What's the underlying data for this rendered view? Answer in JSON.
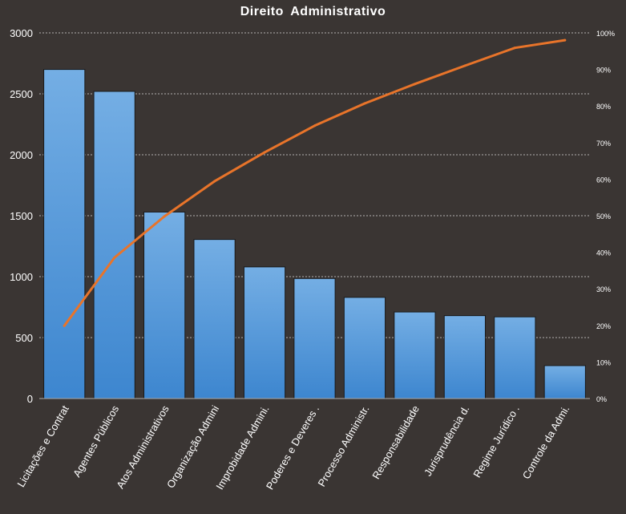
{
  "chart_data": {
    "type": "bar",
    "title": "Direito  Administrativo",
    "categories": [
      "Licitações e Contrat",
      "Agentes Públicos",
      "Atos Administrativos",
      "Organização Admini",
      "Improbidade Admini.",
      "Poderes e Deveres .",
      "Processo Administr.",
      "Responsabilidade",
      "Jurisprudência d.",
      "Regime Jurídico .",
      "Controle da Admi."
    ],
    "values": [
      2700,
      2520,
      1530,
      1305,
      1080,
      985,
      830,
      710,
      680,
      670,
      270
    ],
    "cumulative_percent": [
      19.9,
      38.5,
      49.8,
      59.4,
      67.3,
      74.6,
      80.7,
      86.0,
      91.0,
      95.9,
      98.0
    ],
    "ylim": [
      0,
      3000
    ],
    "y_ticks": [
      "0",
      "500",
      "1000",
      "1500",
      "2000",
      "2500",
      "3000"
    ],
    "y2lim": [
      0,
      100
    ],
    "y2_ticks": [
      "0%",
      "10%",
      "20%",
      "30%",
      "40%",
      "50%",
      "60%",
      "70%",
      "80%",
      "90%",
      "100%"
    ],
    "grid": "dashed-horizontal",
    "colors": {
      "background": "#3a3533",
      "bar_top": "#74aee4",
      "bar_bottom": "#3d86cf",
      "bar_edge": "#1a1a1a",
      "line": "#e8742a",
      "grid": "#d9d9d9",
      "text": "#ffffff"
    }
  }
}
